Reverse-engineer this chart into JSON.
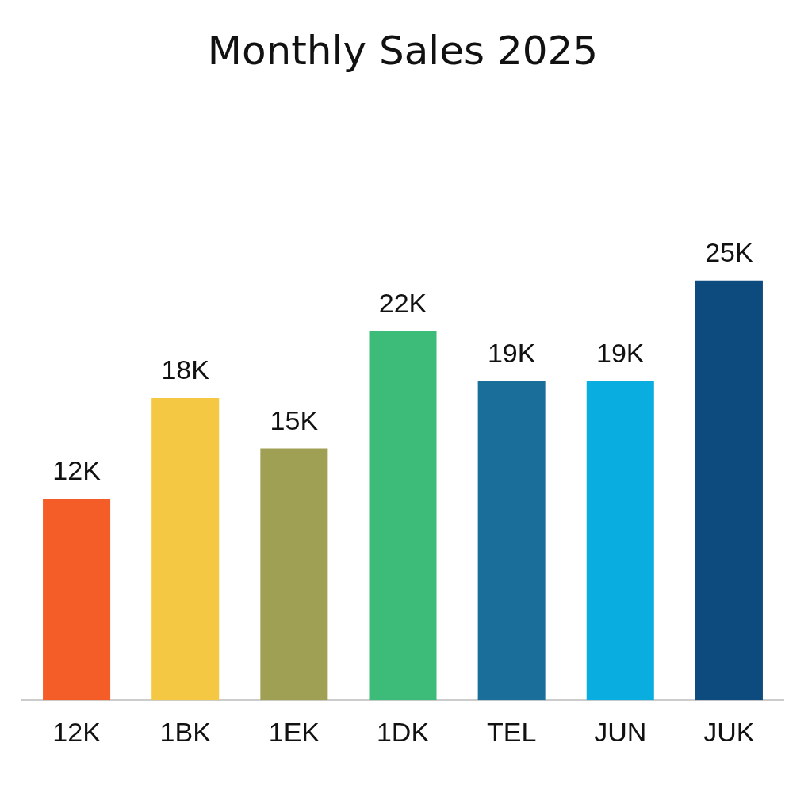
{
  "chart_data": {
    "type": "bar",
    "title": "Monthly Sales 2025",
    "categories": [
      "12K",
      "1BK",
      "1EK",
      "1DK",
      "TEL",
      "JUN",
      "JUK"
    ],
    "values": [
      12,
      18,
      15,
      22,
      19,
      19,
      25
    ],
    "value_labels": [
      "12K",
      "18K",
      "15K",
      "22K",
      "19K",
      "19K",
      "25K"
    ],
    "colors": [
      "#f45d27",
      "#f4c842",
      "#a0a055",
      "#3dbb78",
      "#1a6f9a",
      "#0aaddf",
      "#0d4a7e"
    ],
    "grid": false,
    "legend": false
  }
}
